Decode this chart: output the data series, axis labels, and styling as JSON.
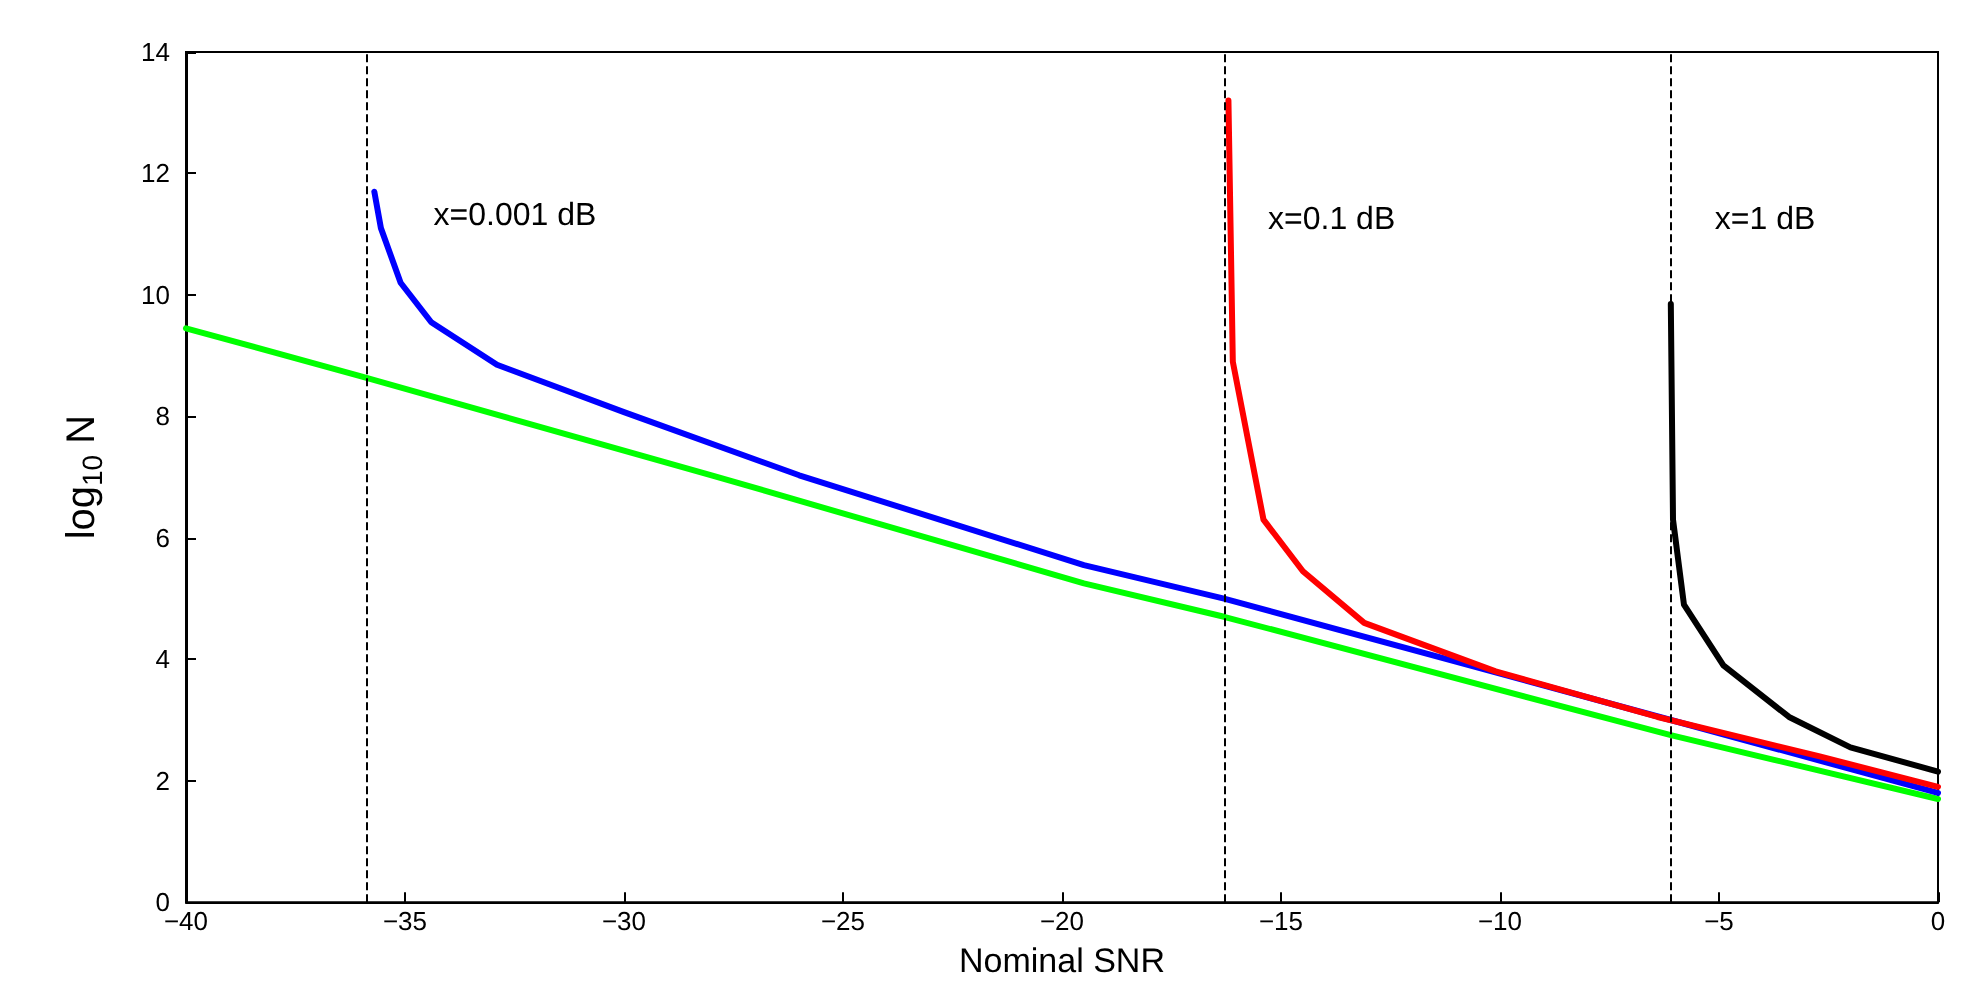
{
  "chart_data": {
    "type": "line",
    "xlabel": "Nominal SNR",
    "ylabel": "log$_{10}$ N",
    "xlim": [
      -40,
      0
    ],
    "xticks": [
      -40,
      -35,
      -30,
      -25,
      -20,
      -15,
      -10,
      -5,
      0
    ],
    "ylim": [
      0,
      14
    ],
    "yticks": [
      0,
      2,
      4,
      6,
      8,
      10,
      12,
      14
    ],
    "grid": false,
    "marker": "none",
    "line_style": "solid",
    "series": [
      {
        "color": "#00ff00",
        "x": [
          -40,
          -36,
          -28,
          -19.5,
          -16.3,
          -6.1,
          0
        ],
        "values": [
          9.45,
          8.66,
          7.03,
          5.25,
          4.7,
          2.75,
          1.7
        ]
      },
      {
        "color": "#0000ff",
        "x": [
          -35.7,
          -35.55,
          -35.1,
          -34.4,
          -32.9,
          -30,
          -26,
          -19.5,
          -16.3,
          -6.1,
          0
        ],
        "values": [
          11.7,
          11.1,
          10.2,
          9.55,
          8.85,
          8.07,
          7.03,
          5.55,
          5.0,
          3.0,
          1.8
        ]
      },
      {
        "color": "#ff0000",
        "x": [
          -16.2,
          -16.1,
          -15.4,
          -14.5,
          -13.1,
          -10.1,
          -6.4,
          -2.7,
          0
        ],
        "values": [
          13.2,
          8.9,
          6.3,
          5.45,
          4.6,
          3.8,
          3.05,
          2.4,
          1.9
        ]
      },
      {
        "color": "#000000",
        "x": [
          -6.1,
          -6.05,
          -5.8,
          -4.9,
          -3.4,
          -2.0,
          0
        ],
        "values": [
          9.85,
          6.3,
          4.9,
          3.9,
          3.05,
          2.55,
          2.15
        ]
      }
    ],
    "ref_lines": [
      {
        "axis": "x",
        "value": -35.9,
        "color": "#000000",
        "line_style": "dashed"
      },
      {
        "axis": "x",
        "value": -16.3,
        "color": "#000000",
        "line_style": "dashed"
      },
      {
        "axis": "x",
        "value": -6.1,
        "color": "#000000",
        "line_style": "dashed"
      }
    ],
    "annotations": [
      "x=0.001 dB",
      "x=0.1 dB",
      "x=1 dB"
    ]
  }
}
